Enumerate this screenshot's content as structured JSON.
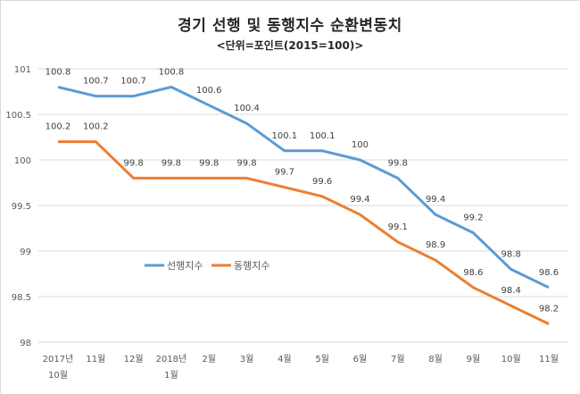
{
  "chart_data": {
    "type": "line",
    "title": "경기 선행 및 동행지수 순환변동치",
    "subtitle": "<단위=포인트(2015=100)>",
    "xlabel": "",
    "ylabel": "",
    "categories": [
      [
        "2017년",
        "10월"
      ],
      [
        "11월"
      ],
      [
        "12월"
      ],
      [
        "2018년",
        "1월"
      ],
      [
        "2월"
      ],
      [
        "3월"
      ],
      [
        "4월"
      ],
      [
        "5월"
      ],
      [
        "6월"
      ],
      [
        "7월"
      ],
      [
        "8월"
      ],
      [
        "9월"
      ],
      [
        "10월"
      ],
      [
        "11월"
      ]
    ],
    "ylim": [
      98,
      101
    ],
    "yticks": [
      98,
      98.5,
      99,
      99.5,
      100,
      100.5,
      101
    ],
    "ytick_labels": [
      "98",
      "98.5",
      "99",
      "99.5",
      "100",
      "100.5",
      "101"
    ],
    "grid": true,
    "legend": {
      "placement": "center-left"
    },
    "series": [
      {
        "name": "선행지수",
        "color": "#5b9bd5",
        "values": [
          100.8,
          100.7,
          100.7,
          100.8,
          100.6,
          100.4,
          100.1,
          100.1,
          100.0,
          99.8,
          99.4,
          99.2,
          98.8,
          98.6
        ],
        "labels": [
          "100.8",
          "100.7",
          "100.7",
          "100.8",
          "100.6",
          "100.4",
          "100.1",
          "100.1",
          "100",
          "99.8",
          "99.4",
          "99.2",
          "98.8",
          "98.6"
        ]
      },
      {
        "name": "동행지수",
        "color": "#ed7d31",
        "values": [
          100.2,
          100.2,
          99.8,
          99.8,
          99.8,
          99.8,
          99.7,
          99.6,
          99.4,
          99.1,
          98.9,
          98.6,
          98.4,
          98.2
        ],
        "labels": [
          "100.2",
          "100.2",
          "99.8",
          "99.8",
          "99.8",
          "99.8",
          "99.7",
          "99.6",
          "99.4",
          "99.1",
          "98.9",
          "98.6",
          "98.4",
          "98.2"
        ]
      }
    ]
  }
}
